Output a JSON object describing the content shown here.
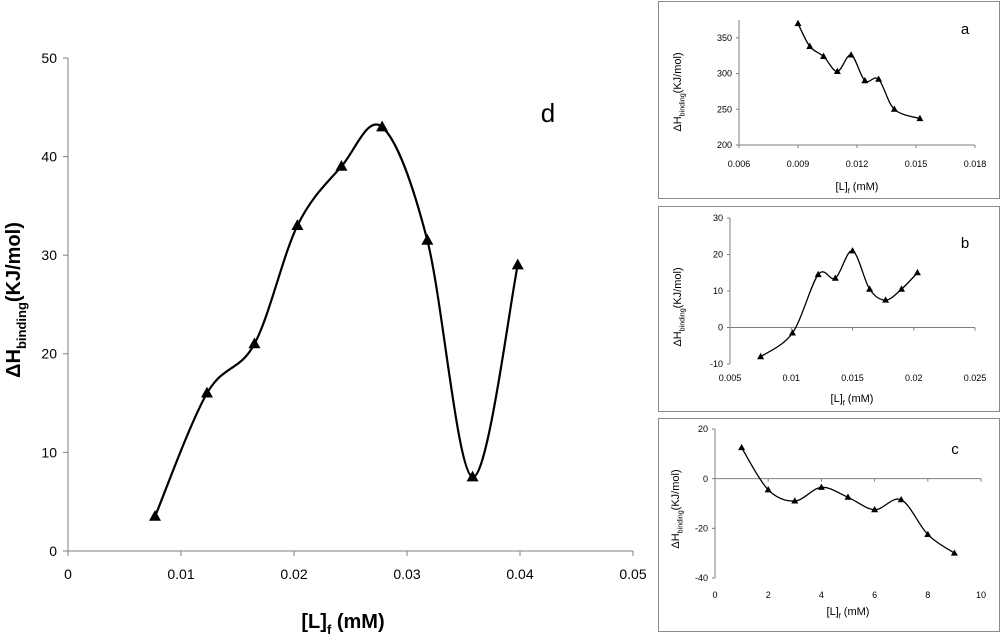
{
  "chart_data": [
    {
      "id": "d",
      "type": "line",
      "panel_label": "d",
      "ylabel_main": "ΔH",
      "ylabel_sub": "binding",
      "ylabel_tail": "(KJ/mol)",
      "xlabel_main": "[L]",
      "xlabel_sub": "f",
      "xlabel_tail": " (mM)",
      "xlim": [
        0,
        0.05
      ],
      "ylim": [
        0,
        50
      ],
      "x_ticks": [
        "0",
        "0.01",
        "0.02",
        "0.03",
        "0.04",
        "0.05"
      ],
      "y_ticks": [
        "0",
        "10",
        "20",
        "30",
        "40",
        "50"
      ],
      "grid": false,
      "marker": "triangle",
      "series": [
        {
          "x": [
            0.0077,
            0.0123,
            0.0165,
            0.0203,
            0.0242,
            0.0278,
            0.0318,
            0.0358,
            0.0398
          ],
          "y": [
            3.5,
            16,
            21,
            33,
            39,
            43,
            31.5,
            7.5,
            29
          ]
        }
      ]
    },
    {
      "id": "a",
      "type": "line",
      "panel_label": "a",
      "ylabel_main": "ΔH",
      "ylabel_sub": "binding",
      "ylabel_tail": "(KJ/mol)",
      "xlabel_main": "[L]",
      "xlabel_sub": "f",
      "xlabel_tail": " (mM)",
      "xlim": [
        0.006,
        0.018
      ],
      "ylim": [
        200,
        375
      ],
      "x_ticks": [
        "0.006",
        "0.009",
        "0.012",
        "0.015",
        "0.018"
      ],
      "y_ticks": [
        "200",
        "250",
        "300",
        "350"
      ],
      "grid": false,
      "marker": "triangle",
      "series": [
        {
          "x": [
            0.009,
            0.0096,
            0.0103,
            0.011,
            0.0117,
            0.0124,
            0.0131,
            0.0139,
            0.0152
          ],
          "y": [
            370,
            338,
            324,
            303,
            326,
            290,
            292,
            250,
            237
          ]
        }
      ]
    },
    {
      "id": "b",
      "type": "line",
      "panel_label": "b",
      "ylabel_main": "ΔH",
      "ylabel_sub": "binding",
      "ylabel_tail": "(KJ/mol)",
      "xlabel_main": "[L]",
      "xlabel_sub": "f",
      "xlabel_tail": " (mM)",
      "xlim": [
        0.005,
        0.025
      ],
      "ylim": [
        -10,
        30
      ],
      "x_ticks": [
        "0.005",
        "0.01",
        "0.015",
        "0.02",
        "0.025"
      ],
      "y_ticks": [
        "-10",
        "0",
        "10",
        "20",
        "30"
      ],
      "grid": false,
      "marker": "triangle",
      "series": [
        {
          "x": [
            0.0075,
            0.0101,
            0.0122,
            0.0136,
            0.015,
            0.0164,
            0.0177,
            0.019,
            0.0203
          ],
          "y": [
            -8,
            -1.5,
            14.5,
            13.5,
            21,
            10.5,
            7.5,
            10.5,
            15
          ]
        }
      ]
    },
    {
      "id": "c",
      "type": "line",
      "panel_label": "c",
      "ylabel_main": "ΔH",
      "ylabel_sub": "binding",
      "ylabel_tail": "(KJ/mol)",
      "xlabel_main": "[L]",
      "xlabel_sub": "f",
      "xlabel_tail": " (mM)",
      "xlim": [
        0,
        10
      ],
      "ylim": [
        -40,
        20
      ],
      "x_ticks": [
        "0",
        "2",
        "4",
        "6",
        "8",
        "10"
      ],
      "y_ticks": [
        "-40",
        "-20",
        "0",
        "20"
      ],
      "grid": false,
      "marker": "triangle",
      "series": [
        {
          "x": [
            1,
            2,
            3,
            4,
            5,
            6,
            7,
            8,
            9
          ],
          "y": [
            12.5,
            -4.5,
            -9,
            -3.5,
            -7.5,
            -12.5,
            -8.5,
            -22.5,
            -30
          ]
        }
      ]
    }
  ]
}
